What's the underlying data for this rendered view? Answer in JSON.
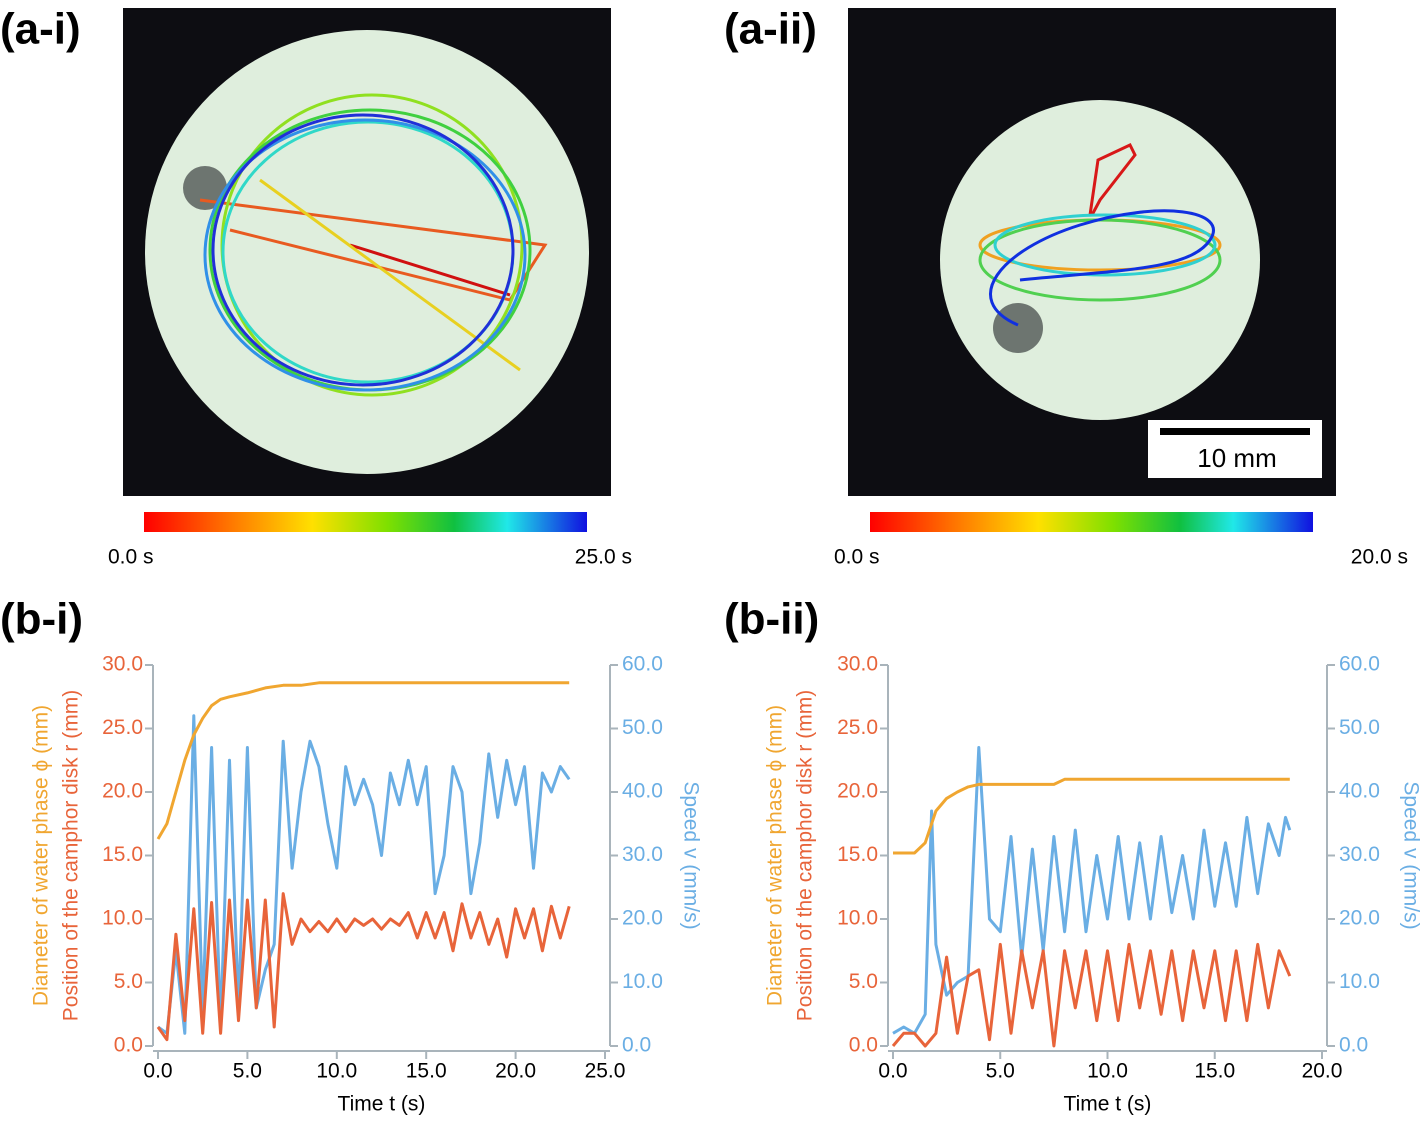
{
  "images": [
    {
      "title": "(a-i)",
      "colorbar": {
        "start": "0.0 s",
        "end": "25.0 s"
      }
    },
    {
      "title": "(a-ii)",
      "colorbar": {
        "start": "0.0 s",
        "end": "20.0 s"
      },
      "scale_bar": "10 mm"
    }
  ],
  "chart_data": [
    {
      "type": "line",
      "title": "(b-i)",
      "xlabel": "Time  t (s)",
      "xlim": [
        0,
        25
      ],
      "xticks": [
        {
          "value": 0,
          "label": "0.0"
        },
        {
          "value": 5,
          "label": "5.0"
        },
        {
          "value": 10,
          "label": "10.0"
        },
        {
          "value": 15,
          "label": "15.0"
        },
        {
          "value": 20,
          "label": "20.0"
        },
        {
          "value": 25,
          "label": "25.0"
        }
      ],
      "ylim": [
        0,
        30
      ],
      "yticks": [
        {
          "value": 0,
          "label": "0.0"
        },
        {
          "value": 5,
          "label": "5.0"
        },
        {
          "value": 10,
          "label": "10.0"
        },
        {
          "value": 15,
          "label": "15.0"
        },
        {
          "value": 20,
          "label": "20.0"
        },
        {
          "value": 25,
          "label": "25.0"
        },
        {
          "value": 30,
          "label": "30.0"
        }
      ],
      "y2lim": [
        0,
        60
      ],
      "y2ticks": [
        {
          "value": 0,
          "label": "0.0"
        },
        {
          "value": 10,
          "label": "10.0"
        },
        {
          "value": 20,
          "label": "20.0"
        },
        {
          "value": 30,
          "label": "30.0"
        },
        {
          "value": 40,
          "label": "40.0"
        },
        {
          "value": 50,
          "label": "50.0"
        },
        {
          "value": 60,
          "label": "60.0"
        }
      ],
      "series": [
        {
          "name": "Diameter of water phase  ϕ  (mm)",
          "color": "#f0a630",
          "x": [
            0,
            0.5,
            1,
            1.5,
            2,
            2.5,
            3,
            3.5,
            4,
            5,
            6,
            7,
            8,
            9,
            10,
            15,
            20,
            23
          ],
          "values": [
            16.3,
            17.5,
            20,
            22.5,
            24.5,
            25.8,
            26.8,
            27.3,
            27.5,
            27.8,
            28.2,
            28.4,
            28.4,
            28.6,
            28.6,
            28.6,
            28.6,
            28.6
          ]
        },
        {
          "name": "Position of the camphor disk  r (mm)",
          "color": "#e8643a",
          "x": [
            0,
            0.5,
            1,
            1.5,
            2,
            2.5,
            3,
            3.5,
            4,
            4.5,
            5,
            5.5,
            6,
            6.5,
            7,
            7.5,
            8,
            8.5,
            9,
            9.5,
            10,
            10.5,
            11,
            11.5,
            12,
            12.5,
            13,
            13.5,
            14,
            14.5,
            15,
            15.5,
            16,
            16.5,
            17,
            17.5,
            18,
            18.5,
            19,
            19.5,
            20,
            20.5,
            21,
            21.5,
            22,
            22.5,
            23
          ],
          "values": [
            1.5,
            0.5,
            8.8,
            2,
            10.8,
            1,
            11.3,
            1,
            11.5,
            2,
            11.5,
            3,
            11.5,
            1.5,
            12,
            8,
            10,
            9,
            9.8,
            9,
            10,
            9,
            10,
            9.5,
            10,
            9.2,
            10,
            9.5,
            10.5,
            8.5,
            10.5,
            8.5,
            10.5,
            7.5,
            11.2,
            8.5,
            10.5,
            8,
            10,
            7,
            10.8,
            8.5,
            10.8,
            7.5,
            11,
            8.5,
            11
          ]
        },
        {
          "name": "Speed  v (mm/s)",
          "color": "#6aaee4",
          "axis": "y2",
          "x": [
            0,
            0.5,
            1,
            1.5,
            2,
            2.5,
            3,
            3.5,
            4,
            4.5,
            5,
            5.5,
            6,
            6.5,
            7,
            7.5,
            8,
            8.5,
            9,
            9.5,
            10,
            10.5,
            11,
            11.5,
            12,
            12.5,
            13,
            13.5,
            14,
            14.5,
            15,
            15.5,
            16,
            16.5,
            17,
            17.5,
            18,
            18.5,
            19,
            19.5,
            20,
            20.5,
            21,
            21.5,
            22,
            22.5,
            23
          ],
          "values": [
            3,
            2,
            15,
            2,
            52,
            5,
            47,
            3,
            45,
            6,
            47,
            6,
            12,
            16,
            48,
            28,
            40,
            48,
            44,
            35,
            28,
            44,
            38,
            42,
            38,
            30,
            43,
            38,
            45,
            38,
            44,
            24,
            30,
            44,
            40,
            24,
            32,
            46,
            36,
            45,
            38,
            44,
            28,
            43,
            40,
            44,
            42
          ]
        }
      ]
    },
    {
      "type": "line",
      "title": "(b-ii)",
      "xlabel": "Time  t (s)",
      "xlim": [
        0,
        20
      ],
      "xticks": [
        {
          "value": 0,
          "label": "0.0"
        },
        {
          "value": 5,
          "label": "5.0"
        },
        {
          "value": 10,
          "label": "10.0"
        },
        {
          "value": 15,
          "label": "15.0"
        },
        {
          "value": 20,
          "label": "20.0"
        }
      ],
      "ylim": [
        0,
        30
      ],
      "yticks": [
        {
          "value": 0,
          "label": "0.0"
        },
        {
          "value": 5,
          "label": "5.0"
        },
        {
          "value": 10,
          "label": "10.0"
        },
        {
          "value": 15,
          "label": "15.0"
        },
        {
          "value": 20,
          "label": "20.0"
        },
        {
          "value": 25,
          "label": "25.0"
        },
        {
          "value": 30,
          "label": "30.0"
        }
      ],
      "y2lim": [
        0,
        60
      ],
      "y2ticks": [
        {
          "value": 0,
          "label": "0.0"
        },
        {
          "value": 10,
          "label": "10.0"
        },
        {
          "value": 20,
          "label": "20.0"
        },
        {
          "value": 30,
          "label": "30.0"
        },
        {
          "value": 40,
          "label": "40.0"
        },
        {
          "value": 50,
          "label": "50.0"
        },
        {
          "value": 60,
          "label": "60.0"
        }
      ],
      "series": [
        {
          "name": "Diameter of water phase  ϕ  (mm)",
          "color": "#f0a630",
          "x": [
            0,
            1,
            1.5,
            2,
            2.5,
            3,
            3.5,
            4,
            5,
            6,
            7,
            7.5,
            8,
            10,
            12,
            14,
            16,
            18.5
          ],
          "values": [
            15.2,
            15.2,
            16,
            18.5,
            19.5,
            20,
            20.4,
            20.6,
            20.6,
            20.6,
            20.6,
            20.6,
            21,
            21,
            21,
            21,
            21,
            21
          ]
        },
        {
          "name": "Position of the camphor disk  r (mm)",
          "color": "#e8643a",
          "x": [
            0,
            0.5,
            1,
            1.5,
            2,
            2.5,
            3,
            3.5,
            4,
            4.5,
            5,
            5.5,
            6,
            6.5,
            7,
            7.5,
            8,
            8.5,
            9,
            9.5,
            10,
            10.5,
            11,
            11.5,
            12,
            12.5,
            13,
            13.5,
            14,
            14.5,
            15,
            15.5,
            16,
            16.5,
            17,
            17.5,
            18,
            18.5
          ],
          "values": [
            0,
            1,
            1,
            0,
            1,
            7,
            1,
            5.5,
            6,
            0.5,
            8,
            1,
            7.5,
            3,
            7.5,
            0,
            7.5,
            3,
            7.5,
            2,
            7.5,
            2,
            8,
            3,
            7.5,
            2.5,
            7.5,
            2,
            7.5,
            3,
            7.5,
            2,
            7.5,
            2,
            8,
            3,
            7.5,
            5.5
          ]
        },
        {
          "name": "Speed  v (mm/s)",
          "color": "#6aaee4",
          "axis": "y2",
          "x": [
            0,
            0.5,
            1,
            1.5,
            1.8,
            2,
            2.5,
            3,
            3.5,
            4,
            4.5,
            5,
            5.5,
            6,
            6.5,
            7,
            7.5,
            8,
            8.5,
            9,
            9.5,
            10,
            10.5,
            11,
            11.5,
            12,
            12.5,
            13,
            13.5,
            14,
            14.5,
            15,
            15.5,
            16,
            16.5,
            17,
            17.5,
            18,
            18.3,
            18.5
          ],
          "values": [
            2,
            3,
            2,
            5,
            37,
            16,
            8,
            10,
            11,
            47,
            20,
            18,
            33,
            14,
            31,
            15,
            33,
            18,
            34,
            18,
            30,
            20,
            33,
            20,
            32,
            20,
            33,
            21,
            30,
            20,
            34,
            22,
            32,
            22,
            36,
            24,
            35,
            30,
            36,
            34
          ]
        }
      ]
    }
  ]
}
